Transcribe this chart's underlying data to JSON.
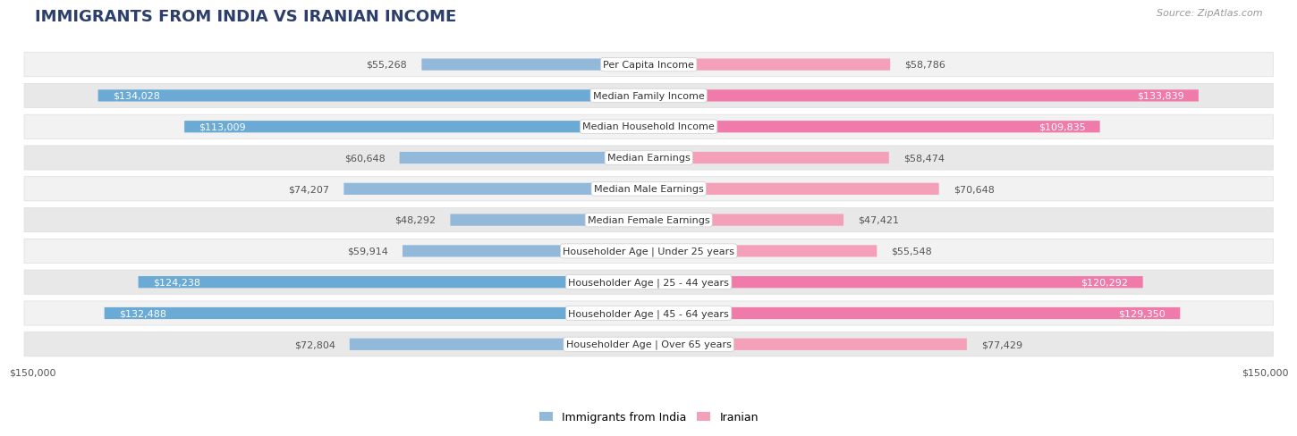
{
  "title": "IMMIGRANTS FROM INDIA VS IRANIAN INCOME",
  "source": "Source: ZipAtlas.com",
  "categories": [
    "Per Capita Income",
    "Median Family Income",
    "Median Household Income",
    "Median Earnings",
    "Median Male Earnings",
    "Median Female Earnings",
    "Householder Age | Under 25 years",
    "Householder Age | 25 - 44 years",
    "Householder Age | 45 - 64 years",
    "Householder Age | Over 65 years"
  ],
  "india_values": [
    55268,
    134028,
    113009,
    60648,
    74207,
    48292,
    59914,
    124238,
    132488,
    72804
  ],
  "iranian_values": [
    58786,
    133839,
    109835,
    58474,
    70648,
    47421,
    55548,
    120292,
    129350,
    77429
  ],
  "max_val": 150000,
  "india_bar_color": "#92b8da",
  "iranian_bar_color": "#f4a0b8",
  "india_bar_color_full": "#6aaad4",
  "iranian_bar_color_full": "#f07aaa",
  "india_legend_color": "#92b8da",
  "iranian_legend_color": "#f4a0b8",
  "bg_color": "#ffffff",
  "row_bg_even": "#f2f2f2",
  "row_bg_odd": "#e8e8e8",
  "label_bg_color": "#ffffff",
  "label_border_color": "#cccccc",
  "title_color": "#2c3e6b",
  "value_color_dark": "#555555",
  "value_color_white": "#ffffff",
  "title_fontsize": 13,
  "label_fontsize": 8,
  "value_fontsize": 8,
  "legend_fontsize": 9,
  "source_fontsize": 8,
  "india_label_threshold": 100000,
  "iranian_label_threshold": 100000
}
